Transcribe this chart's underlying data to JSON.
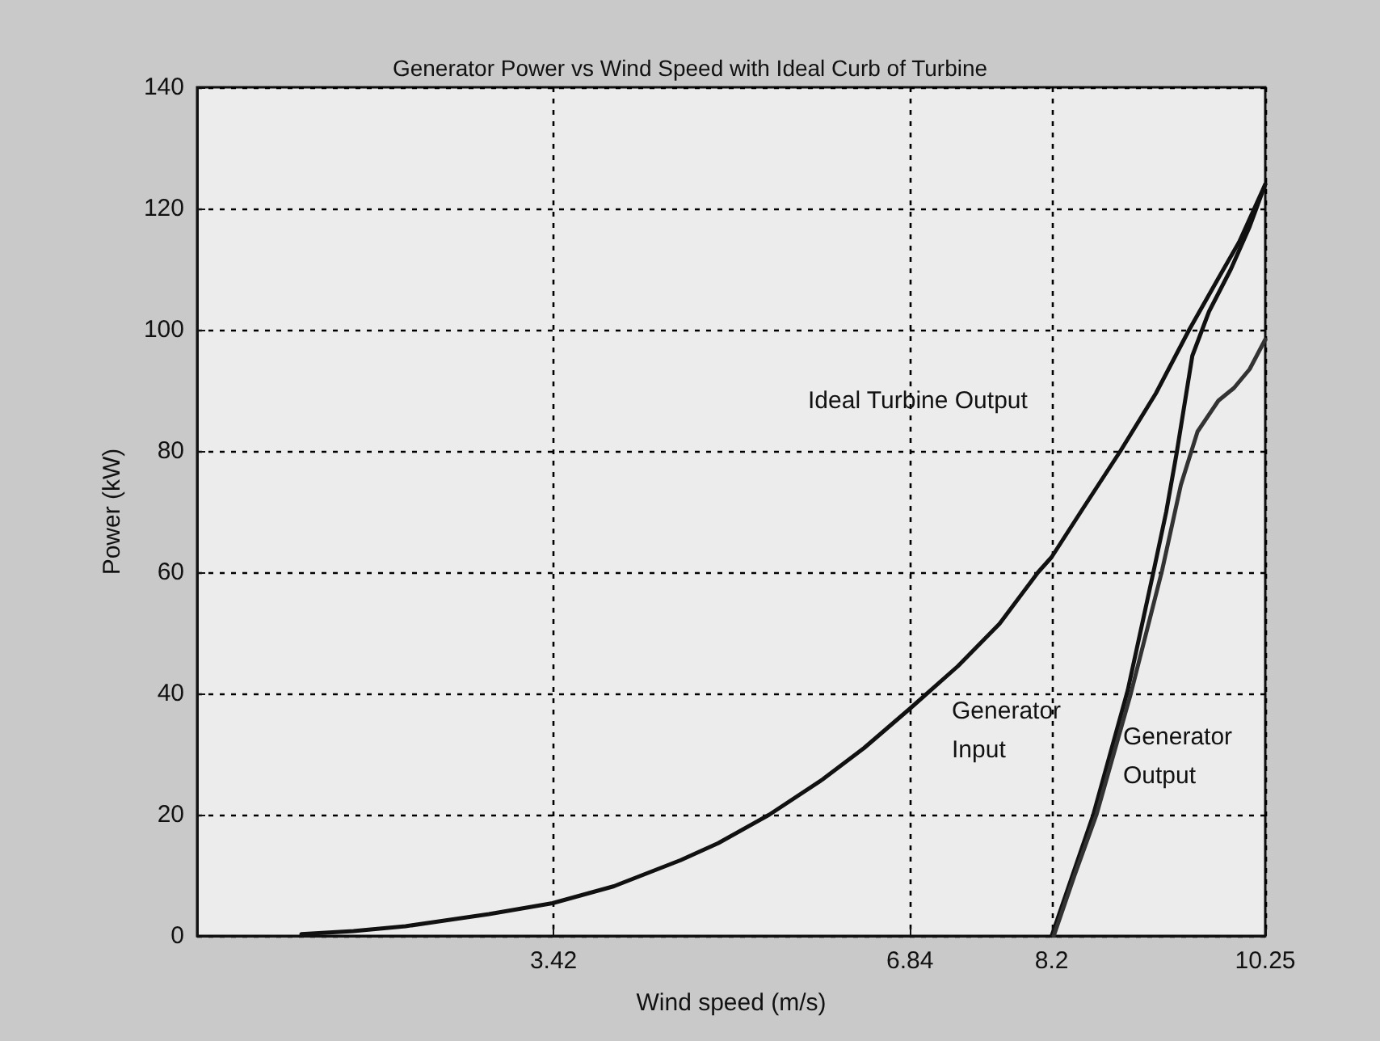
{
  "chart_data": {
    "type": "line",
    "title": "Generator Power vs Wind Speed with Ideal Curb of Turbine",
    "xlabel": "Wind speed (m/s)",
    "ylabel": "Power (kW)",
    "xlim": [
      0,
      10.25
    ],
    "xticks": [
      3.42,
      6.84,
      8.2,
      10.25
    ],
    "ylim": [
      0,
      140
    ],
    "yticks": [
      0,
      20,
      40,
      60,
      80,
      100,
      120,
      140
    ],
    "grid": true,
    "marker": "none",
    "line_style": "solid",
    "series": [
      {
        "color": "#111111",
        "x": [
          1.0,
          1.5,
          2.0,
          2.32,
          2.8,
          3.41,
          4.0,
          4.64,
          5.0,
          5.49,
          6.0,
          6.4,
          6.84,
          7.3,
          7.7,
          8.07,
          8.2,
          8.5,
          8.86,
          9.2,
          9.52,
          9.8,
          10.0,
          10.25
        ],
        "values": [
          0.3,
          0.8,
          1.6,
          2.4,
          3.6,
          5.4,
          8.2,
          12.5,
          15.3,
          20.0,
          25.8,
          31.0,
          37.5,
          44.5,
          51.5,
          60.0,
          62.5,
          70.5,
          80.0,
          89.5,
          100.0,
          108.5,
          114.5,
          124.0
        ]
      },
      {
        "color": "#111111",
        "x": [
          8.2,
          8.4,
          8.6,
          8.93,
          9.18,
          9.3,
          9.4,
          9.55,
          9.71,
          9.92,
          10.1,
          10.25
        ],
        "values": [
          0,
          10,
          20,
          40.5,
          60.3,
          70,
          79.7,
          95.7,
          103,
          110,
          117,
          124
        ]
      },
      {
        "color": "#333333",
        "x": [
          8.22,
          8.42,
          8.63,
          8.96,
          9.26,
          9.44,
          9.6,
          9.8,
          9.95,
          10.1,
          10.25
        ],
        "values": [
          0,
          10,
          20,
          40,
          60.3,
          74.4,
          83.2,
          88.3,
          90.4,
          93.5,
          98.4
        ]
      }
    ],
    "annotations": [
      "Ideal Turbine Output",
      "Generator\nInput",
      "Generator\nOutput"
    ]
  }
}
